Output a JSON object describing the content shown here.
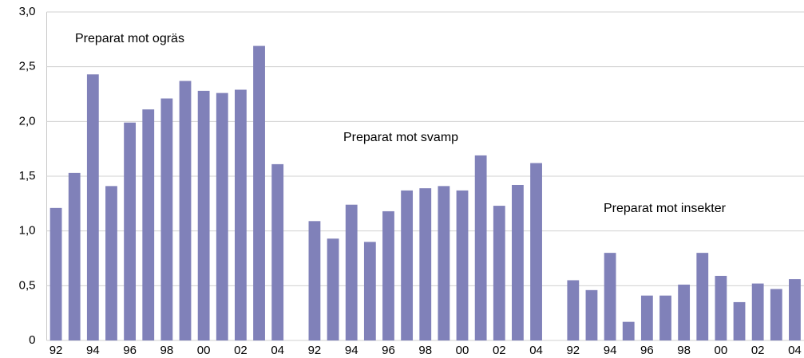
{
  "chart_data": {
    "type": "bar",
    "categories": [
      "92",
      null,
      "94",
      null,
      "96",
      null,
      "98",
      null,
      "00",
      null,
      "02",
      null,
      "04",
      null,
      "92",
      null,
      "94",
      null,
      "96",
      null,
      "98",
      null,
      "00",
      null,
      "02",
      null,
      "04",
      null,
      "92",
      null,
      "94",
      null,
      "96",
      null,
      "98",
      null,
      "00",
      null,
      "02",
      null,
      "04"
    ],
    "values": [
      1.21,
      1.53,
      2.43,
      1.41,
      1.99,
      2.11,
      2.21,
      2.37,
      2.28,
      2.26,
      2.29,
      2.69,
      1.61,
      null,
      1.09,
      0.93,
      1.24,
      0.9,
      1.18,
      1.37,
      1.39,
      1.41,
      1.37,
      1.69,
      1.23,
      1.42,
      1.62,
      null,
      0.55,
      0.46,
      0.8,
      0.17,
      0.41,
      0.41,
      0.51,
      0.8,
      0.59,
      0.35,
      0.52,
      0.47,
      0.56
    ],
    "color": "#8081b9",
    "ylim": [
      0,
      3.0
    ],
    "yticks": [
      0,
      {
        "value": 0.5,
        "label": "0,5"
      },
      {
        "value": 1.0,
        "label": "1,0"
      },
      {
        "value": 1.5,
        "label": "1,5"
      },
      {
        "value": 2.0,
        "label": "2,0"
      },
      {
        "value": 2.5,
        "label": "2,5"
      },
      {
        "value": 3.0,
        "label": "3,0"
      }
    ],
    "grid": true,
    "annotations": [
      "Preparat mot ogräs",
      "Preparat mot svamp",
      "Preparat mot insekter"
    ]
  }
}
